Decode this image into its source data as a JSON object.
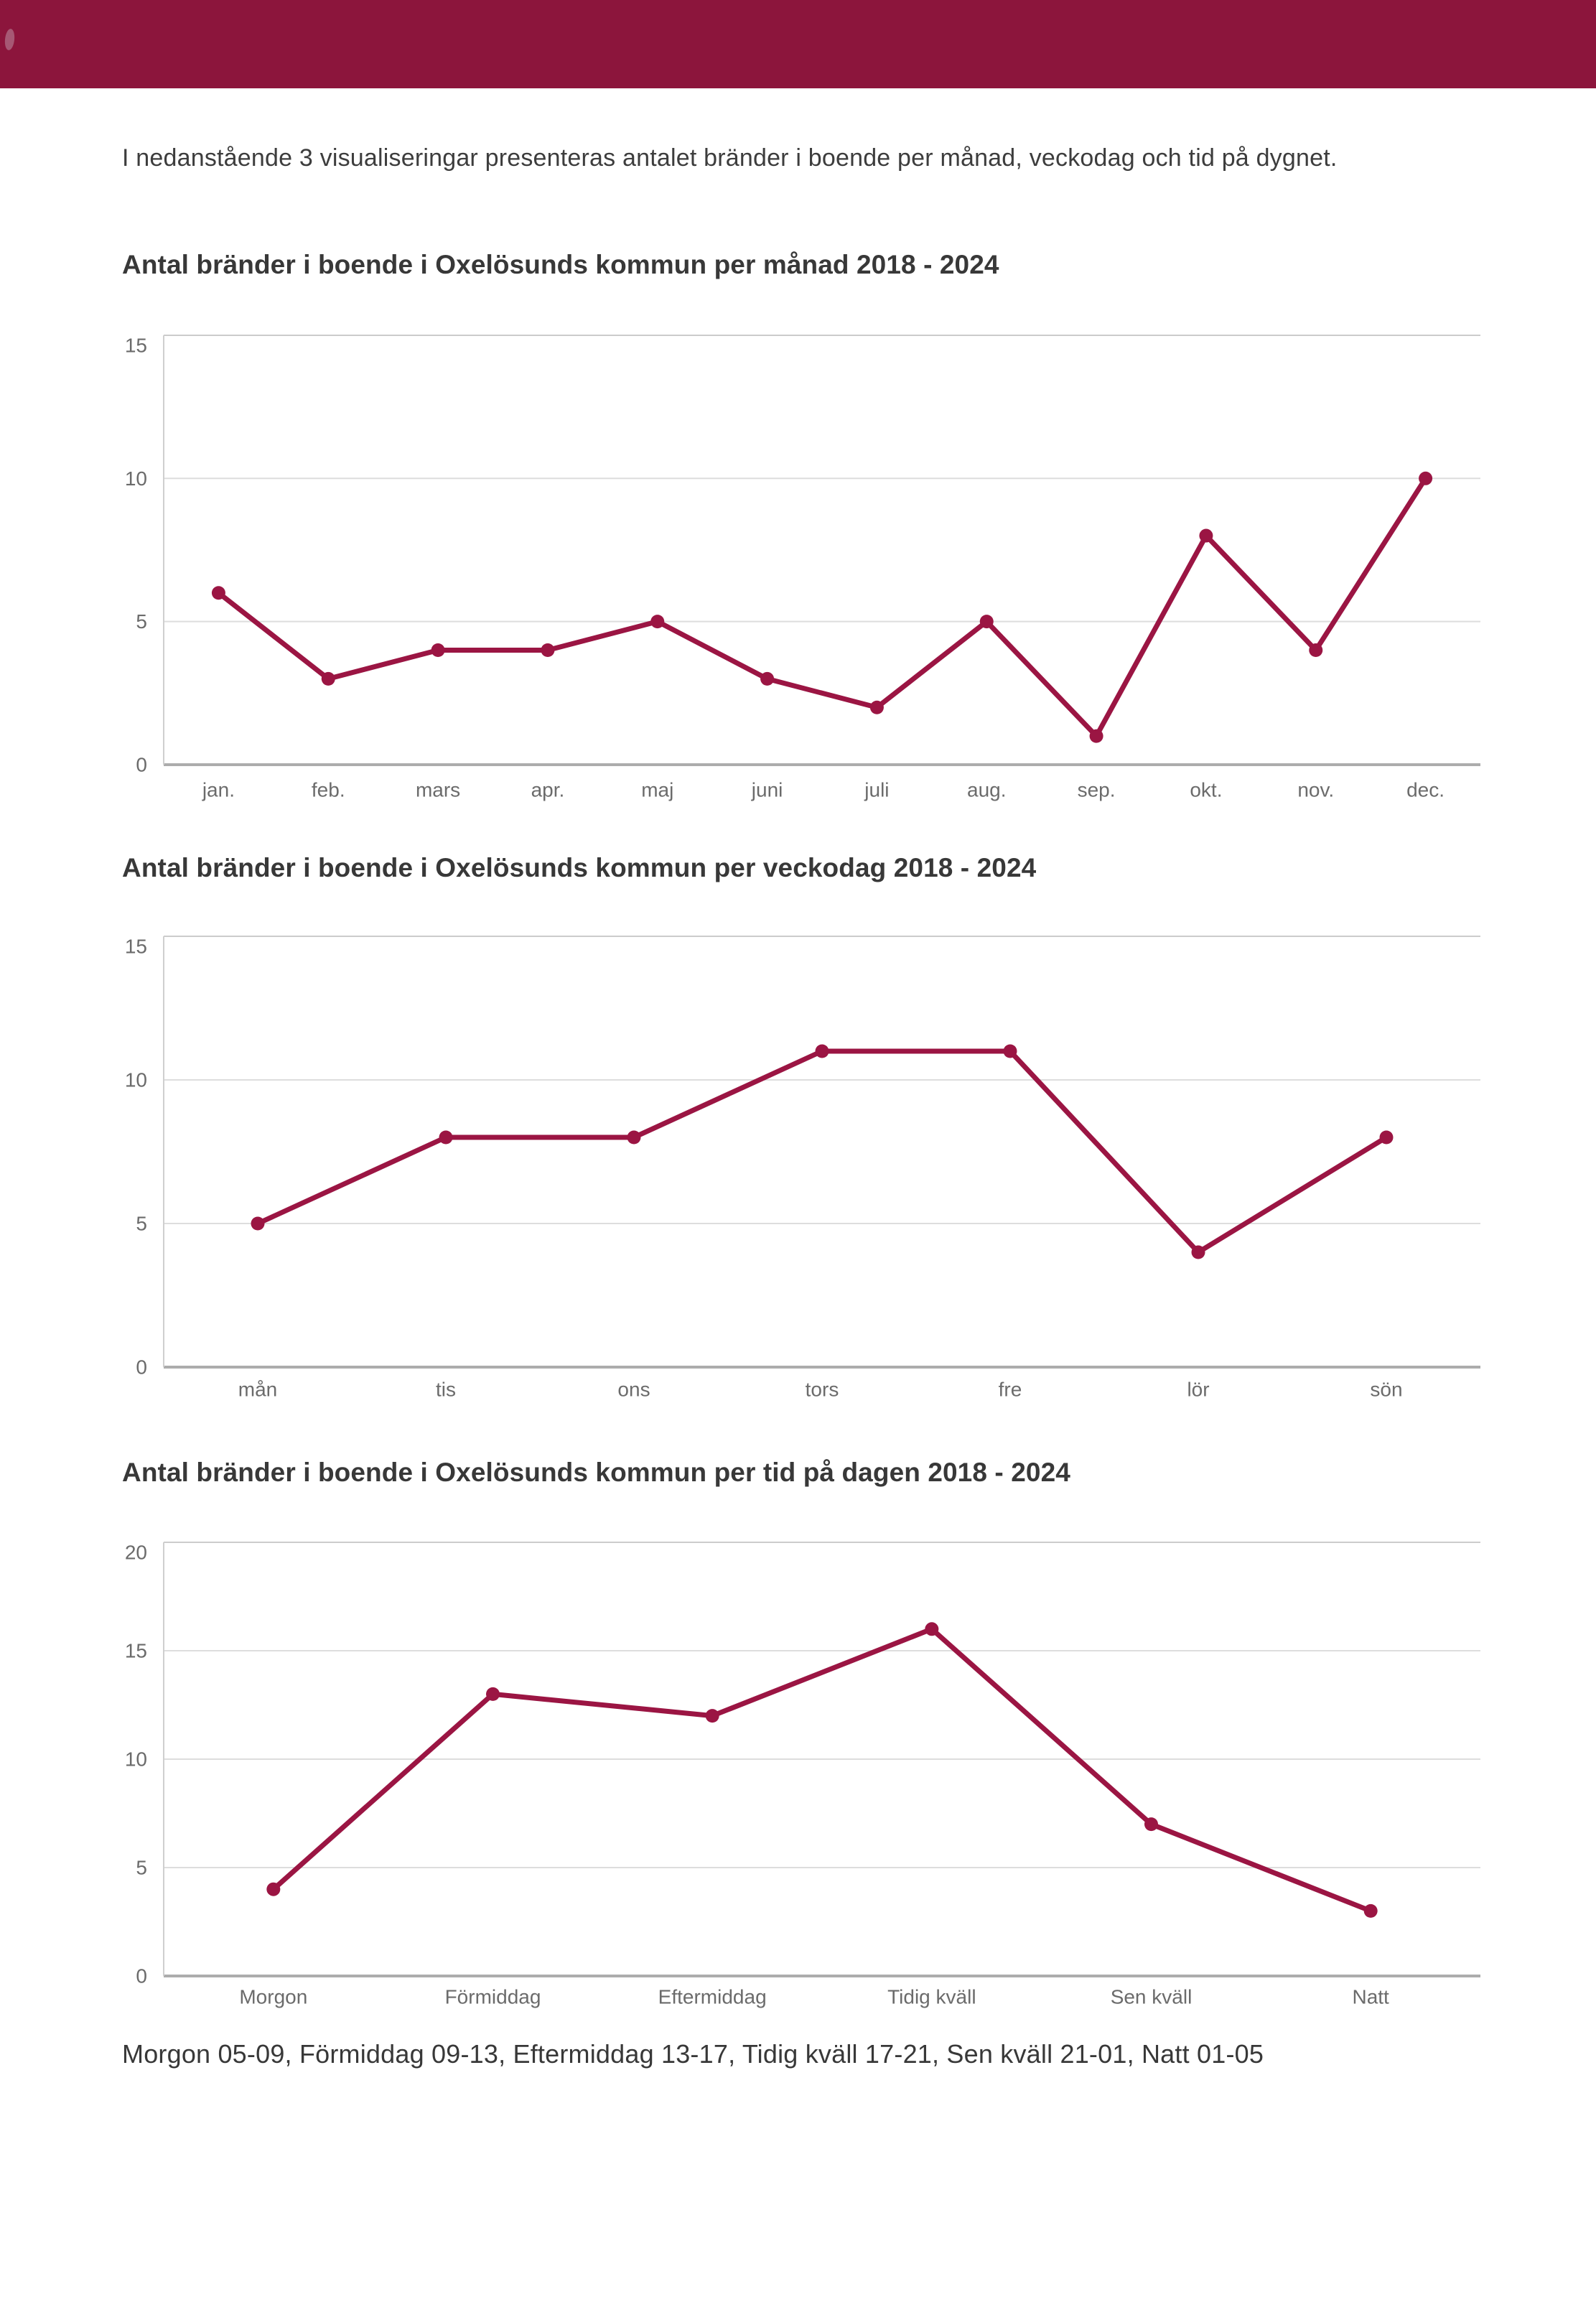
{
  "page": {
    "intro": "I nedanstående 3 visualiseringar presenteras antalet bränder i boende per månad, veckodag och tid på dygnet.",
    "footer": "Morgon 05-09, Förmiddag 09-13, Eftermiddag 13-17, Tidig kväll 17-21, Sen kväll 21-01, Natt 01-05"
  },
  "colors": {
    "header_band": "#8C153C",
    "series_line": "#9B1543",
    "marker_fill": "#9B1543",
    "grid_line": "#DDDDDD",
    "top_grid_line": "#CCCCCC",
    "zero_axis_line": "#ACACAC",
    "y_axis_line": "#CFCFCF",
    "tick_label": "#6B6B6B",
    "title_text": "#383838",
    "body_text": "#3D3D3D"
  },
  "chart_data": [
    {
      "type": "line",
      "title": "Antal bränder i boende i Oxelösunds kommun per månad 2018 - 2024",
      "categories": [
        "jan.",
        "feb.",
        "mars",
        "apr.",
        "maj",
        "juni",
        "juli",
        "aug.",
        "sep.",
        "okt.",
        "nov.",
        "dec."
      ],
      "values": [
        6,
        3,
        4,
        4,
        5,
        3,
        2,
        5,
        1,
        8,
        4,
        10
      ],
      "series_name": "Antal bränder",
      "xlabel": "",
      "ylabel": "",
      "ylim": [
        0,
        15
      ],
      "yticks": [
        0,
        5,
        10,
        15
      ],
      "grid": true,
      "legend": false,
      "marker": "circle"
    },
    {
      "type": "line",
      "title": "Antal bränder i boende i Oxelösunds kommun per veckodag 2018 - 2024",
      "categories": [
        "mån",
        "tis",
        "ons",
        "tors",
        "fre",
        "lör",
        "sön"
      ],
      "values": [
        5,
        8,
        8,
        11,
        11,
        4,
        8
      ],
      "series_name": "Antal bränder",
      "xlabel": "",
      "ylabel": "",
      "ylim": [
        0,
        15
      ],
      "yticks": [
        0,
        5,
        10,
        15
      ],
      "grid": true,
      "legend": false,
      "marker": "circle"
    },
    {
      "type": "line",
      "title": "Antal bränder i boende i Oxelösunds kommun per tid på dagen 2018 - 2024",
      "categories": [
        "Morgon",
        "Förmiddag",
        "Eftermiddag",
        "Tidig kväll",
        "Sen kväll",
        "Natt"
      ],
      "values": [
        4,
        13,
        12,
        16,
        7,
        3
      ],
      "series_name": "Antal bränder",
      "xlabel": "",
      "ylabel": "",
      "ylim": [
        0,
        20
      ],
      "yticks": [
        0,
        5,
        10,
        15,
        20
      ],
      "grid": true,
      "legend": false,
      "marker": "circle"
    }
  ]
}
